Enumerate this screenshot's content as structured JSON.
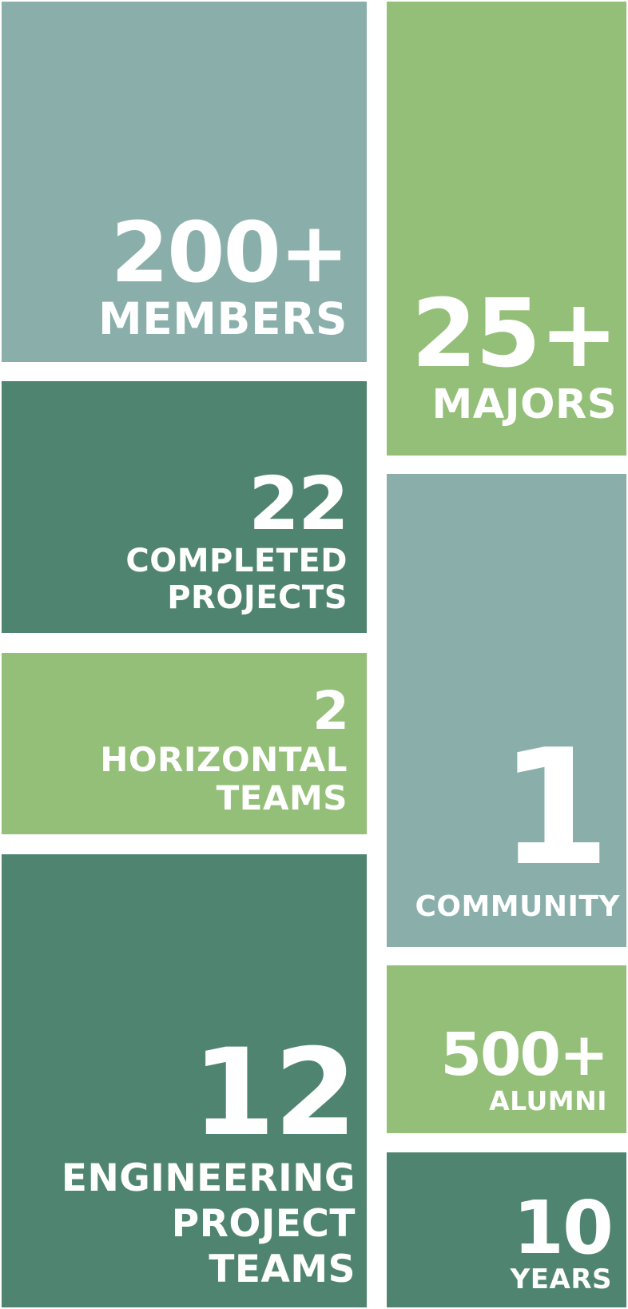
{
  "colors": {
    "teal": "#8aafab",
    "dark_green": "#4f8570",
    "light_green": "#94bf78",
    "text": "#ffffff"
  },
  "stats": {
    "members": {
      "number": "200+",
      "label_lines": [
        "MEMBERS"
      ]
    },
    "completed": {
      "number": "22",
      "label_lines": [
        "COMPLETED",
        "PROJECTS"
      ]
    },
    "horizontal": {
      "number": "2",
      "label_lines": [
        "HORIZONTAL",
        "TEAMS"
      ]
    },
    "engineering": {
      "number": "12",
      "label_lines": [
        "ENGINEERING",
        "PROJECT",
        "TEAMS"
      ]
    },
    "majors": {
      "number": "25+",
      "label_lines": [
        "MAJORS"
      ]
    },
    "community": {
      "number": "1",
      "label_lines": [
        "COMMUNITY"
      ]
    },
    "alumni": {
      "number": "500+",
      "label_lines": [
        "ALUMNI"
      ]
    },
    "years": {
      "number": "10",
      "label_lines": [
        "YEARS"
      ]
    }
  }
}
